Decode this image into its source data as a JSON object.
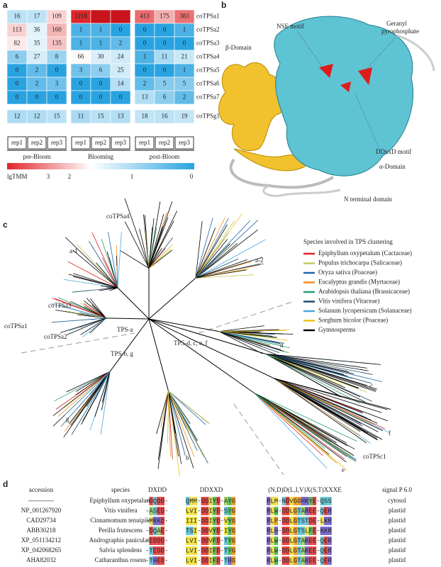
{
  "panel_labels": [
    "a",
    "b",
    "c",
    "d"
  ],
  "heatmap": {
    "genes": [
      "coTPSa1",
      "coTPSa2",
      "coTPSa3",
      "coTPSa4",
      "coTPSa5",
      "coTPSa6",
      "coTPSa7",
      "coTPSg1"
    ],
    "groups": [
      {
        "name": "pre-Bloom",
        "reps": [
          "rep1",
          "rep2",
          "rep3"
        ]
      },
      {
        "name": "Blooming",
        "reps": [
          "rep1",
          "rep2",
          "rep3"
        ]
      },
      {
        "name": "post-Bloom",
        "reps": [
          "rep1",
          "rep2",
          "rep3"
        ]
      }
    ],
    "values": [
      [
        16,
        17,
        109,
        1218,
        null,
        null,
        413,
        175,
        383
      ],
      [
        113,
        36,
        160,
        1,
        1,
        0,
        0,
        0,
        1
      ],
      [
        82,
        35,
        135,
        1,
        1,
        2,
        0,
        0,
        0
      ],
      [
        6,
        27,
        8,
        66,
        30,
        24,
        1,
        11,
        21
      ],
      [
        0,
        2,
        0,
        3,
        6,
        25,
        0,
        0,
        1
      ],
      [
        0,
        2,
        3,
        0,
        0,
        14,
        2,
        5,
        5
      ],
      [
        0,
        0,
        0,
        0,
        0,
        0,
        13,
        6,
        2
      ],
      [
        12,
        12,
        15,
        11,
        15,
        13,
        18,
        16,
        19
      ]
    ],
    "legend": {
      "title": "lgTMM",
      "ticks": [
        3,
        2,
        1,
        0
      ]
    }
  },
  "structure": {
    "labels": [
      "β-Domain",
      "NSE motif",
      "Geranyl",
      "pyrophosphate",
      "DDxxD motif",
      "α-Domain",
      "N terminal domain"
    ]
  },
  "tree": {
    "clade_labels": [
      "coTPSa4",
      "a-1",
      "a-2",
      "coTPSa3",
      "coTPSa1",
      "coTPSa2",
      "TPS-a",
      "TPS-b, g",
      "TPS-d, c, e, f",
      "d",
      "c",
      "g",
      "f",
      "b",
      "coTPSc1",
      "e"
    ],
    "legend": {
      "title": "Species involved in TPS clustering",
      "species": [
        {
          "name": "Epiphyllum oxypetalum (Cactaceae)",
          "color": "#d62728"
        },
        {
          "name": "Populus trichocarpa (Salicaceae)",
          "color": "#c3c85a"
        },
        {
          "name": "Oryza sativa (Poaceae)",
          "color": "#2165a6"
        },
        {
          "name": "Eucalyptus grandis (Myrtaceae)",
          "color": "#f08c1e"
        },
        {
          "name": "Arabidopsis thaliana (Brassicaceae)",
          "color": "#2a9d6f"
        },
        {
          "name": "Vitis vinifera (Vitaceae)",
          "color": "#1b4d6b"
        },
        {
          "name": "Solanum lycopersicum (Solanaceae)",
          "color": "#4aa8d8"
        },
        {
          "name": "Sorghum bicolor (Poaceae)",
          "color": "#e8c020"
        },
        {
          "name": "Gymnosperms",
          "color": "#000000"
        }
      ]
    }
  },
  "alignment": {
    "headers": [
      "accession",
      "species",
      "DXDD",
      "DDXXD",
      "(N,D)D(L,I,V)X(S,T)XXXE",
      "signal P 6.0"
    ],
    "rows": [
      [
        "------------",
        "Epiphyllum oxypetalum",
        "-DQDD-",
        "QMM-DDIYD-AYG",
        "RLM-NDVGGHKYE-QSS",
        "cytosol"
      ],
      [
        "NP_001267920",
        "Vitis vinifera",
        "-ASED-",
        "LVI-DDIYD-SYG",
        "RLW-DDLGTAREE-QER",
        "plastid"
      ],
      [
        "CAD29734",
        "Cinnamomum tenuipile",
        "-MRKD-",
        "III-DDIYD-VYG",
        "RLP-DDLGTSTDE-LKR",
        "plastid"
      ],
      [
        "ABB30218",
        "Perilla frutescens",
        "-DQAE-",
        "TSI-DDVYD-IYG",
        "RLH-DDLGTSLFE-KKR",
        "plastid"
      ],
      [
        "XP_051134212",
        "Andrographis paniculata",
        "-EDDD-",
        "LVI-DDVFD-TYG",
        "RLW-DDLGTAKEE-QER",
        "plastid"
      ],
      [
        "XP_042068265",
        "Salvia splendens",
        "-TEDD-",
        "LVI-DDIFD-TYG",
        "RLW-DDLGTAKEE-QER",
        "plastid"
      ],
      [
        "AHA82032",
        "Catharanthus roseus",
        "-THED-",
        "LVI-DDIFD-THG",
        "RLW-DDLGTAKEE-QER",
        "plastid"
      ]
    ]
  }
}
